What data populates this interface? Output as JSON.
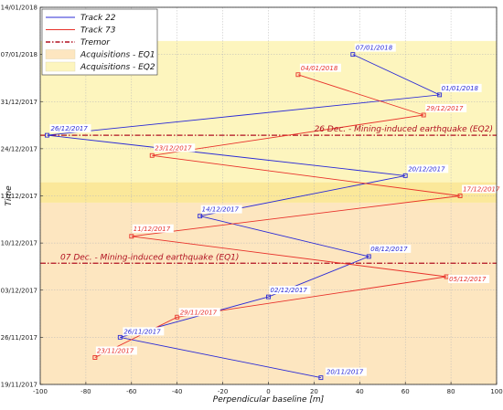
{
  "chart_data": {
    "type": "line",
    "xlabel": "Perpendicular baseline [m]",
    "ylabel": "Time",
    "xlim": [
      -100,
      100
    ],
    "ylim": [
      "2017-11-19",
      "2018-01-14"
    ],
    "x_ticks": [
      -100,
      -80,
      -60,
      -40,
      -20,
      0,
      20,
      40,
      60,
      80,
      100
    ],
    "y_ticks": [
      "19/11/2017",
      "26/11/2017",
      "03/12/2017",
      "10/12/2017",
      "17/12/2017",
      "24/12/2017",
      "31/12/2017",
      "07/01/2018",
      "14/01/2018"
    ],
    "grid": true,
    "legend_position": "top-left",
    "legend": [
      {
        "label": "Track 22",
        "kind": "line",
        "color": "#2b2bd6"
      },
      {
        "label": "Track 73",
        "kind": "line",
        "color": "#e8322b"
      },
      {
        "label": "Tremor",
        "kind": "dash-dot",
        "color": "#b01020"
      },
      {
        "label": "Acquisitions - EQ1",
        "kind": "patch",
        "color": "#fde6c0"
      },
      {
        "label": "Acquisitions - EQ2",
        "kind": "patch",
        "color": "#fdf5be"
      }
    ],
    "bands": [
      {
        "name": "Acquisitions - EQ1",
        "from": "2017-11-19",
        "to": "2017-12-16",
        "color": "#fde6c0"
      },
      {
        "name": "Acquisitions - EQ2",
        "from": "2017-12-16",
        "to": "2018-01-09",
        "color": "#fdf5be"
      },
      {
        "name": "overlap",
        "from": "2017-12-16",
        "to": "2017-12-19",
        "color": "#fbe89a"
      }
    ],
    "series": [
      {
        "name": "Track 22",
        "color": "#2b2bd6",
        "points": [
          {
            "x": 23,
            "date": "2017-11-20",
            "label": "20/11/2017"
          },
          {
            "x": -65,
            "date": "2017-11-26",
            "label": "26/11/2017"
          },
          {
            "x": 0,
            "date": "2017-12-02",
            "label": "02/12/2017"
          },
          {
            "x": 44,
            "date": "2017-12-08",
            "label": "08/12/2017"
          },
          {
            "x": -30,
            "date": "2017-12-14",
            "label": "14/12/2017"
          },
          {
            "x": 60,
            "date": "2017-12-20",
            "label": "20/12/2017"
          },
          {
            "x": -97,
            "date": "2017-12-26",
            "label": "26/12/2017"
          },
          {
            "x": 75,
            "date": "2018-01-01",
            "label": "01/01/2018"
          },
          {
            "x": 37,
            "date": "2018-01-07",
            "label": "07/01/2018"
          }
        ]
      },
      {
        "name": "Track 73",
        "color": "#e8322b",
        "points": [
          {
            "x": -76,
            "date": "2017-11-23",
            "label": "23/11/2017"
          },
          {
            "x": -40,
            "date": "2017-11-29",
            "label": "29/11/2017"
          },
          {
            "x": 78,
            "date": "2017-12-05",
            "label": "05/12/2017"
          },
          {
            "x": -60,
            "date": "2017-12-11",
            "label": "11/12/2017"
          },
          {
            "x": 84,
            "date": "2017-12-17",
            "label": "17/12/2017"
          },
          {
            "x": -51,
            "date": "2017-12-23",
            "label": "23/12/2017"
          },
          {
            "x": 68,
            "date": "2017-12-29",
            "label": "29/12/2017"
          },
          {
            "x": 13,
            "date": "2018-01-04",
            "label": "04/01/2018"
          }
        ]
      }
    ],
    "tremors": [
      {
        "date": "2017-12-07",
        "label": "07 Dec. - Mining-induced earthquake (EQ1)",
        "color": "#b01020"
      },
      {
        "date": "2017-12-26",
        "label": "26 Dec. - Mining-induced earthquake (EQ2)",
        "color": "#b01020"
      }
    ]
  }
}
